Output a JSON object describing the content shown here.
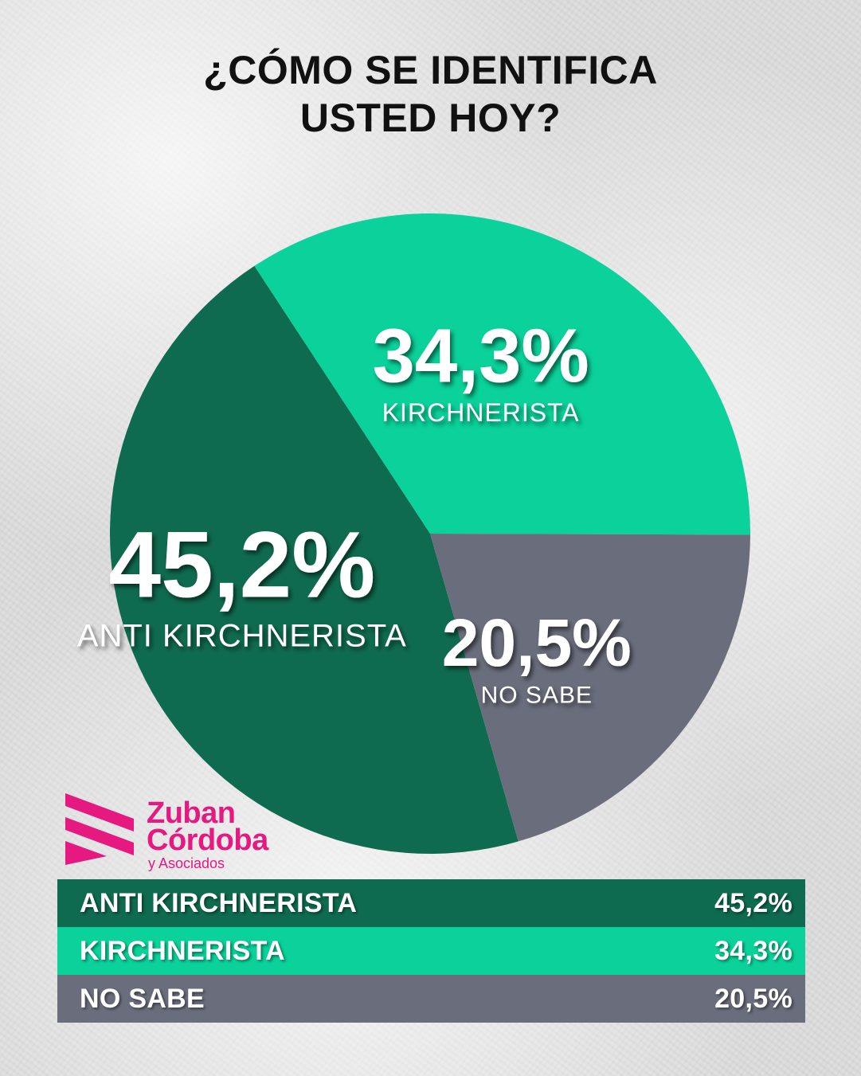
{
  "title": {
    "line1": "¿CÓMO SE IDENTIFICA",
    "line2": "USTED HOY?"
  },
  "chart_data": {
    "type": "pie",
    "slices": [
      {
        "label": "ANTI KIRCHNERISTA",
        "value": 45.2,
        "display": "45,2%",
        "color": "#0f6b4f"
      },
      {
        "label": "KIRCHNERISTA",
        "value": 34.3,
        "display": "34,3%",
        "color": "#0ad29a"
      },
      {
        "label": "NO SABE",
        "value": 20.5,
        "display": "20,5%",
        "color": "#6a6e7c"
      }
    ]
  },
  "logo": {
    "line1": "Zuban",
    "line2": "Córdoba",
    "subtitle": "y Asociados",
    "color": "#e5197f"
  },
  "table": {
    "rows": [
      {
        "label": "ANTI KIRCHNERISTA",
        "value": "45,2%",
        "color": "#0f6b4f"
      },
      {
        "label": "KIRCHNERISTA",
        "value": "34,3%",
        "color": "#0ad29a"
      },
      {
        "label": "NO SABE",
        "value": "20,5%",
        "color": "#6a6e7c"
      }
    ]
  }
}
